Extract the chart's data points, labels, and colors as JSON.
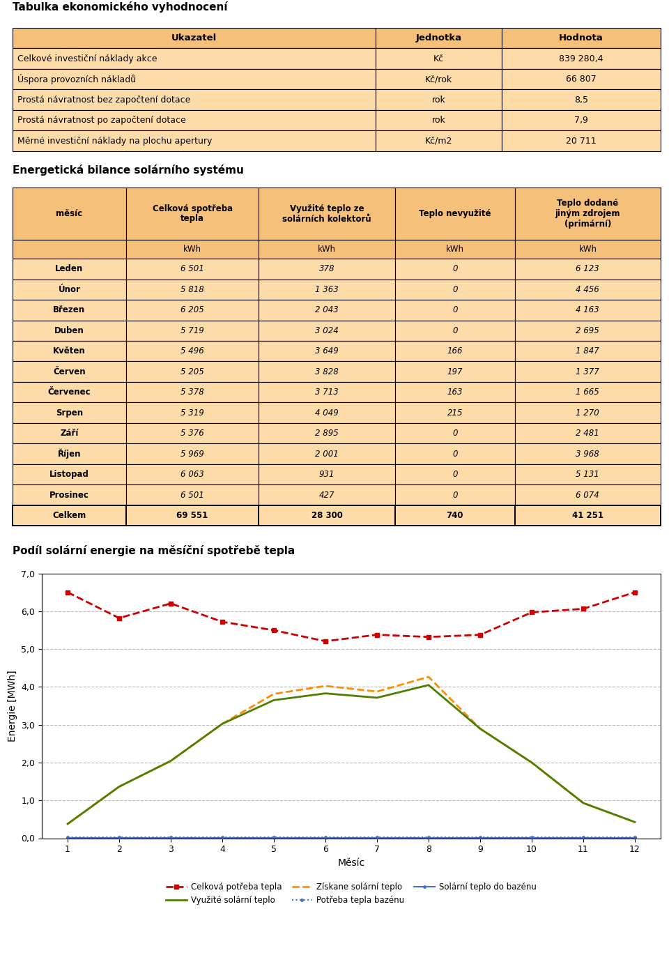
{
  "title1": "Tabulka ekonomického vyhodnocení",
  "table1_headers": [
    "Ukazatel",
    "Jednotka",
    "Hodnota"
  ],
  "table1_rows": [
    [
      "Celkové investiční náklady akce",
      "Kč",
      "839 280,4"
    ],
    [
      "Úspora provozních nákladů",
      "Kč/rok",
      "66 807"
    ],
    [
      "Prostá návratnost bez započtení dotace",
      "rok",
      "8,5"
    ],
    [
      "Prostá návratnost po započtení dotace",
      "rok",
      "7,9"
    ],
    [
      "Měrné investiční náklady na plochu apertury",
      "Kč/m2",
      "20 711"
    ]
  ],
  "title2": "Energetická bilance solárního systému",
  "table2_col_headers": [
    "měsíc",
    "Celková spotřeba\ntepla",
    "Využité teplo ze\nsolárních kolektorů",
    "Teplo nevyužité",
    "Teplo dodané\njiným zdrojem\n(primární)"
  ],
  "table2_units": [
    "",
    "kWh",
    "kWh",
    "kWh",
    "kWh"
  ],
  "table2_rows": [
    [
      "Leden",
      "6 501",
      "378",
      "0",
      "6 123"
    ],
    [
      "Únor",
      "5 818",
      "1 363",
      "0",
      "4 456"
    ],
    [
      "Březen",
      "6 205",
      "2 043",
      "0",
      "4 163"
    ],
    [
      "Duben",
      "5 719",
      "3 024",
      "0",
      "2 695"
    ],
    [
      "Květen",
      "5 496",
      "3 649",
      "166",
      "1 847"
    ],
    [
      "Červen",
      "5 205",
      "3 828",
      "197",
      "1 377"
    ],
    [
      "Červenec",
      "5 378",
      "3 713",
      "163",
      "1 665"
    ],
    [
      "Srpen",
      "5 319",
      "4 049",
      "215",
      "1 270"
    ],
    [
      "Září",
      "5 376",
      "2 895",
      "0",
      "2 481"
    ],
    [
      "Říjen",
      "5 969",
      "2 001",
      "0",
      "3 968"
    ],
    [
      "Listopad",
      "6 063",
      "931",
      "0",
      "5 131"
    ],
    [
      "Prosinec",
      "6 501",
      "427",
      "0",
      "6 074"
    ],
    [
      "Celkem",
      "69 551",
      "28 300",
      "740",
      "41 251"
    ]
  ],
  "title3": "Podíl solární energie na měsíční spotřebě tepla",
  "chart_months": [
    1,
    2,
    3,
    4,
    5,
    6,
    7,
    8,
    9,
    10,
    11,
    12
  ],
  "celkova_potreba": [
    6.501,
    5.818,
    6.205,
    5.719,
    5.496,
    5.205,
    5.378,
    5.319,
    5.376,
    5.969,
    6.063,
    6.501
  ],
  "vyuzite_solarni": [
    0.378,
    1.363,
    2.043,
    3.024,
    3.649,
    3.828,
    3.713,
    4.049,
    2.895,
    2.001,
    0.931,
    0.427
  ],
  "ziskane_solarni": [
    0.378,
    1.363,
    2.043,
    3.024,
    3.815,
    4.025,
    3.876,
    4.264,
    2.895,
    2.001,
    0.931,
    0.427
  ],
  "potreba_bazenu": [
    0.02,
    0.02,
    0.02,
    0.02,
    0.02,
    0.02,
    0.02,
    0.02,
    0.02,
    0.02,
    0.02,
    0.02
  ],
  "solarni_do_bazenu": [
    0.01,
    0.01,
    0.01,
    0.01,
    0.01,
    0.01,
    0.01,
    0.01,
    0.01,
    0.01,
    0.01,
    0.01
  ],
  "header_bg": "#F5C07A",
  "row_bg": "#FDDCAA",
  "border_color": "#000000",
  "text_color": "#000000",
  "title_color": "#000000",
  "line_red": "#CC0000",
  "line_green": "#4F7F00",
  "line_orange": "#FF8C00",
  "line_blue_dot": "#4472C4",
  "line_blue_solid": "#4472C4",
  "chart_bg": "#FFFFFF",
  "grid_color": "#BBBBBB"
}
